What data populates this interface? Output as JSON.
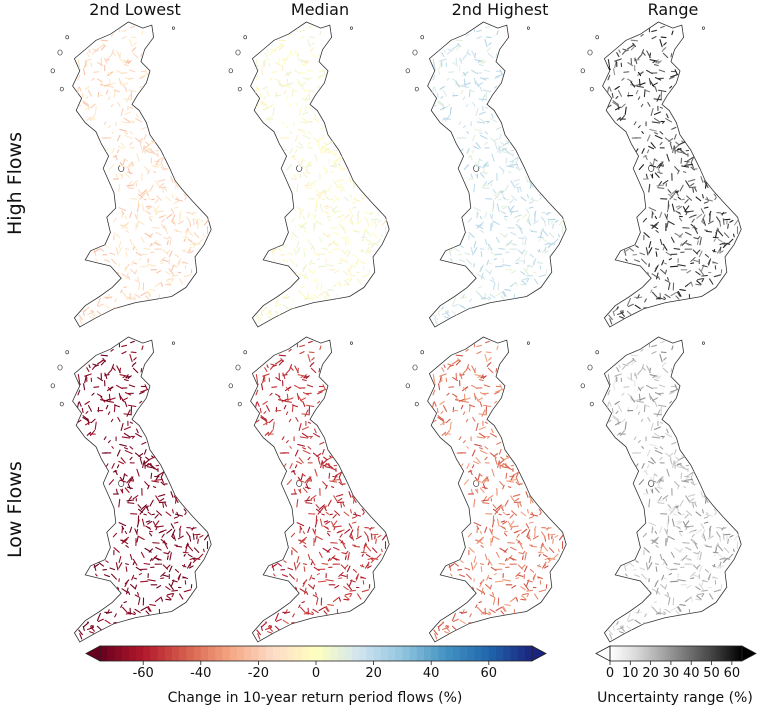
{
  "chart_data": {
    "type": "heatmap",
    "columns": [
      "2nd Lowest",
      "Median",
      "2nd Highest",
      "Range"
    ],
    "rows": [
      "High Flows",
      "Low Flows"
    ],
    "panels": [
      {
        "row": "High Flows",
        "column": "2nd Lowest",
        "typical_change_pct": -15,
        "spread": 8
      },
      {
        "row": "High Flows",
        "column": "Median",
        "typical_change_pct": 0,
        "spread": 8
      },
      {
        "row": "High Flows",
        "column": "2nd Highest",
        "typical_change_pct": 15,
        "spread": 8
      },
      {
        "row": "High Flows",
        "column": "Range",
        "typical_uncertainty_pct": 45,
        "spread": 15
      },
      {
        "row": "Low Flows",
        "column": "2nd Lowest",
        "typical_change_pct": -70,
        "spread": 6
      },
      {
        "row": "Low Flows",
        "column": "Median",
        "typical_change_pct": -55,
        "spread": 8
      },
      {
        "row": "Low Flows",
        "column": "2nd Highest",
        "typical_change_pct": -40,
        "spread": 10
      },
      {
        "row": "Low Flows",
        "column": "Range",
        "typical_uncertainty_pct": 20,
        "spread": 12
      }
    ],
    "colorbars": [
      {
        "label": "Change in 10-year return period flows (%)",
        "ticks": [
          "-60",
          "-40",
          "-20",
          "0",
          "20",
          "40",
          "60"
        ],
        "tick_values": [
          -60,
          -40,
          -20,
          0,
          20,
          40,
          60
        ],
        "range": [
          -75,
          75
        ],
        "extend": "both",
        "colormap": [
          "#67001f",
          "#b2182b",
          "#d6604d",
          "#f4a582",
          "#fddbc7",
          "#ffffbf",
          "#d1e5f0",
          "#92c5de",
          "#4393c3",
          "#2166ac",
          "#1a237e"
        ]
      },
      {
        "label": "Uncertainty range (%)",
        "ticks": [
          "0",
          "10",
          "20",
          "30",
          "40",
          "50",
          "60"
        ],
        "tick_values": [
          0,
          10,
          20,
          30,
          40,
          50,
          60
        ],
        "range": [
          0,
          65
        ],
        "extend": "both",
        "colormap": [
          "#ffffff",
          "#d9d9d9",
          "#a6a6a6",
          "#707070",
          "#3d3d3d",
          "#000000"
        ]
      }
    ]
  }
}
